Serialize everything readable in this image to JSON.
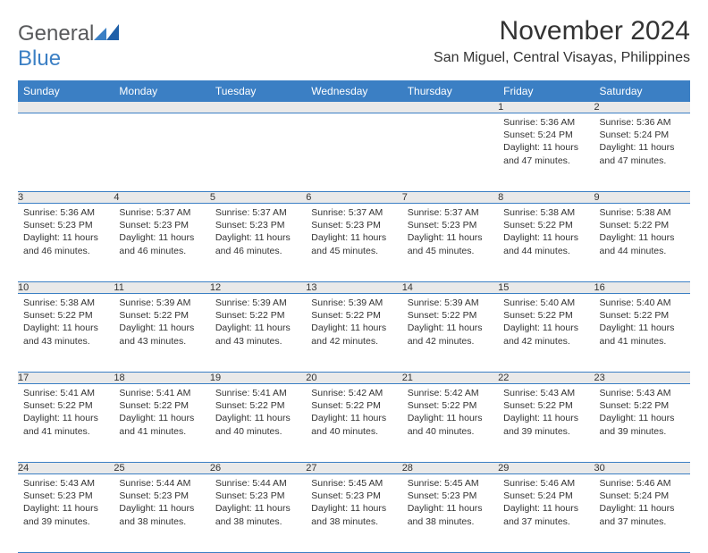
{
  "logo": {
    "word1": "General",
    "word2": "Blue",
    "text_color": "#58595b",
    "accent_color": "#3b7fc4"
  },
  "title": "November 2024",
  "location": "San Miguel, Central Visayas, Philippines",
  "colors": {
    "header_bg": "#3b7fc4",
    "header_text": "#ffffff",
    "daynum_bg": "#e9e9e9",
    "rule": "#3b7fc4",
    "body_text": "#333333",
    "page_bg": "#ffffff"
  },
  "day_headers": [
    "Sunday",
    "Monday",
    "Tuesday",
    "Wednesday",
    "Thursday",
    "Friday",
    "Saturday"
  ],
  "weeks": [
    [
      {
        "n": "",
        "sunrise": "",
        "sunset": "",
        "daylight": ""
      },
      {
        "n": "",
        "sunrise": "",
        "sunset": "",
        "daylight": ""
      },
      {
        "n": "",
        "sunrise": "",
        "sunset": "",
        "daylight": ""
      },
      {
        "n": "",
        "sunrise": "",
        "sunset": "",
        "daylight": ""
      },
      {
        "n": "",
        "sunrise": "",
        "sunset": "",
        "daylight": ""
      },
      {
        "n": "1",
        "sunrise": "Sunrise: 5:36 AM",
        "sunset": "Sunset: 5:24 PM",
        "daylight": "Daylight: 11 hours and 47 minutes."
      },
      {
        "n": "2",
        "sunrise": "Sunrise: 5:36 AM",
        "sunset": "Sunset: 5:24 PM",
        "daylight": "Daylight: 11 hours and 47 minutes."
      }
    ],
    [
      {
        "n": "3",
        "sunrise": "Sunrise: 5:36 AM",
        "sunset": "Sunset: 5:23 PM",
        "daylight": "Daylight: 11 hours and 46 minutes."
      },
      {
        "n": "4",
        "sunrise": "Sunrise: 5:37 AM",
        "sunset": "Sunset: 5:23 PM",
        "daylight": "Daylight: 11 hours and 46 minutes."
      },
      {
        "n": "5",
        "sunrise": "Sunrise: 5:37 AM",
        "sunset": "Sunset: 5:23 PM",
        "daylight": "Daylight: 11 hours and 46 minutes."
      },
      {
        "n": "6",
        "sunrise": "Sunrise: 5:37 AM",
        "sunset": "Sunset: 5:23 PM",
        "daylight": "Daylight: 11 hours and 45 minutes."
      },
      {
        "n": "7",
        "sunrise": "Sunrise: 5:37 AM",
        "sunset": "Sunset: 5:23 PM",
        "daylight": "Daylight: 11 hours and 45 minutes."
      },
      {
        "n": "8",
        "sunrise": "Sunrise: 5:38 AM",
        "sunset": "Sunset: 5:22 PM",
        "daylight": "Daylight: 11 hours and 44 minutes."
      },
      {
        "n": "9",
        "sunrise": "Sunrise: 5:38 AM",
        "sunset": "Sunset: 5:22 PM",
        "daylight": "Daylight: 11 hours and 44 minutes."
      }
    ],
    [
      {
        "n": "10",
        "sunrise": "Sunrise: 5:38 AM",
        "sunset": "Sunset: 5:22 PM",
        "daylight": "Daylight: 11 hours and 43 minutes."
      },
      {
        "n": "11",
        "sunrise": "Sunrise: 5:39 AM",
        "sunset": "Sunset: 5:22 PM",
        "daylight": "Daylight: 11 hours and 43 minutes."
      },
      {
        "n": "12",
        "sunrise": "Sunrise: 5:39 AM",
        "sunset": "Sunset: 5:22 PM",
        "daylight": "Daylight: 11 hours and 43 minutes."
      },
      {
        "n": "13",
        "sunrise": "Sunrise: 5:39 AM",
        "sunset": "Sunset: 5:22 PM",
        "daylight": "Daylight: 11 hours and 42 minutes."
      },
      {
        "n": "14",
        "sunrise": "Sunrise: 5:39 AM",
        "sunset": "Sunset: 5:22 PM",
        "daylight": "Daylight: 11 hours and 42 minutes."
      },
      {
        "n": "15",
        "sunrise": "Sunrise: 5:40 AM",
        "sunset": "Sunset: 5:22 PM",
        "daylight": "Daylight: 11 hours and 42 minutes."
      },
      {
        "n": "16",
        "sunrise": "Sunrise: 5:40 AM",
        "sunset": "Sunset: 5:22 PM",
        "daylight": "Daylight: 11 hours and 41 minutes."
      }
    ],
    [
      {
        "n": "17",
        "sunrise": "Sunrise: 5:41 AM",
        "sunset": "Sunset: 5:22 PM",
        "daylight": "Daylight: 11 hours and 41 minutes."
      },
      {
        "n": "18",
        "sunrise": "Sunrise: 5:41 AM",
        "sunset": "Sunset: 5:22 PM",
        "daylight": "Daylight: 11 hours and 41 minutes."
      },
      {
        "n": "19",
        "sunrise": "Sunrise: 5:41 AM",
        "sunset": "Sunset: 5:22 PM",
        "daylight": "Daylight: 11 hours and 40 minutes."
      },
      {
        "n": "20",
        "sunrise": "Sunrise: 5:42 AM",
        "sunset": "Sunset: 5:22 PM",
        "daylight": "Daylight: 11 hours and 40 minutes."
      },
      {
        "n": "21",
        "sunrise": "Sunrise: 5:42 AM",
        "sunset": "Sunset: 5:22 PM",
        "daylight": "Daylight: 11 hours and 40 minutes."
      },
      {
        "n": "22",
        "sunrise": "Sunrise: 5:43 AM",
        "sunset": "Sunset: 5:22 PM",
        "daylight": "Daylight: 11 hours and 39 minutes."
      },
      {
        "n": "23",
        "sunrise": "Sunrise: 5:43 AM",
        "sunset": "Sunset: 5:22 PM",
        "daylight": "Daylight: 11 hours and 39 minutes."
      }
    ],
    [
      {
        "n": "24",
        "sunrise": "Sunrise: 5:43 AM",
        "sunset": "Sunset: 5:23 PM",
        "daylight": "Daylight: 11 hours and 39 minutes."
      },
      {
        "n": "25",
        "sunrise": "Sunrise: 5:44 AM",
        "sunset": "Sunset: 5:23 PM",
        "daylight": "Daylight: 11 hours and 38 minutes."
      },
      {
        "n": "26",
        "sunrise": "Sunrise: 5:44 AM",
        "sunset": "Sunset: 5:23 PM",
        "daylight": "Daylight: 11 hours and 38 minutes."
      },
      {
        "n": "27",
        "sunrise": "Sunrise: 5:45 AM",
        "sunset": "Sunset: 5:23 PM",
        "daylight": "Daylight: 11 hours and 38 minutes."
      },
      {
        "n": "28",
        "sunrise": "Sunrise: 5:45 AM",
        "sunset": "Sunset: 5:23 PM",
        "daylight": "Daylight: 11 hours and 38 minutes."
      },
      {
        "n": "29",
        "sunrise": "Sunrise: 5:46 AM",
        "sunset": "Sunset: 5:24 PM",
        "daylight": "Daylight: 11 hours and 37 minutes."
      },
      {
        "n": "30",
        "sunrise": "Sunrise: 5:46 AM",
        "sunset": "Sunset: 5:24 PM",
        "daylight": "Daylight: 11 hours and 37 minutes."
      }
    ]
  ]
}
